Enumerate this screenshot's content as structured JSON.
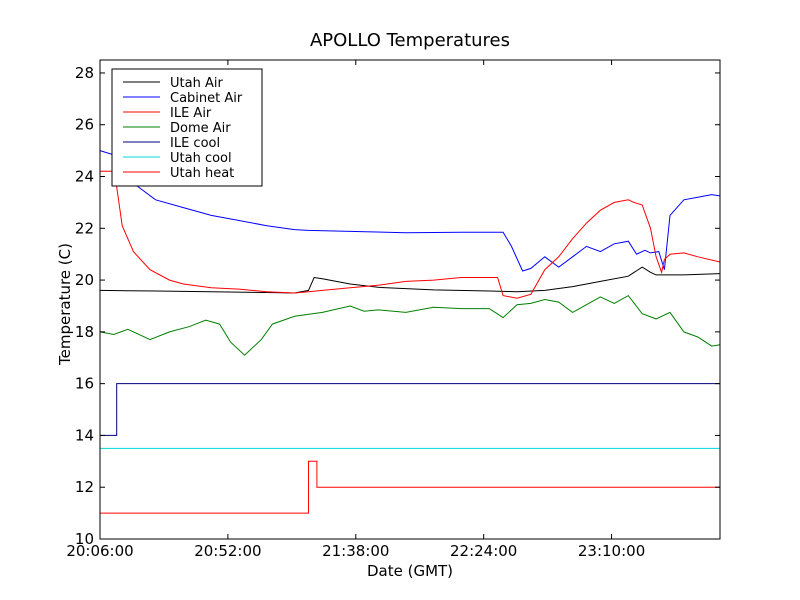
{
  "chart_data": {
    "type": "line",
    "title": "APOLLO Temperatures",
    "xlabel": "Date (GMT)",
    "ylabel": "Temperature (C)",
    "xlim_minutes": [
      0,
      223
    ],
    "ylim": [
      10,
      28.5
    ],
    "x_ticks": [
      {
        "minute": 0,
        "label": "20:06:00"
      },
      {
        "minute": 46,
        "label": "20:52:00"
      },
      {
        "minute": 92,
        "label": "21:38:00"
      },
      {
        "minute": 138,
        "label": "22:24:00"
      },
      {
        "minute": 184,
        "label": "23:10:00"
      }
    ],
    "y_ticks": [
      10,
      12,
      14,
      16,
      18,
      20,
      22,
      24,
      26,
      28
    ],
    "legend_position": "top-left",
    "series": [
      {
        "name": "Utah Air",
        "color": "#000000",
        "x": [
          0,
          20,
          40,
          60,
          70,
          75,
          77,
          80,
          90,
          100,
          120,
          140,
          150,
          160,
          170,
          180,
          190,
          195,
          198,
          200,
          210,
          223
        ],
        "y": [
          19.6,
          19.58,
          19.55,
          19.52,
          19.5,
          19.6,
          20.1,
          20.05,
          19.85,
          19.72,
          19.62,
          19.58,
          19.55,
          19.6,
          19.75,
          19.95,
          20.15,
          20.5,
          20.3,
          20.2,
          20.2,
          20.25
        ]
      },
      {
        "name": "Cabinet Air",
        "color": "#0000ff",
        "x": [
          0,
          6,
          10,
          20,
          30,
          40,
          50,
          60,
          70,
          75,
          90,
          110,
          130,
          145,
          148,
          152,
          155,
          160,
          165,
          170,
          175,
          180,
          185,
          190,
          193,
          196,
          198,
          201,
          203,
          205,
          210,
          215,
          220,
          223
        ],
        "y": [
          25.0,
          24.8,
          23.9,
          23.1,
          22.8,
          22.5,
          22.3,
          22.1,
          21.95,
          21.92,
          21.88,
          21.83,
          21.85,
          21.85,
          21.3,
          20.35,
          20.45,
          20.9,
          20.5,
          20.9,
          21.3,
          21.1,
          21.4,
          21.5,
          21.0,
          21.15,
          21.05,
          21.1,
          20.4,
          22.5,
          23.1,
          23.2,
          23.3,
          23.25
        ]
      },
      {
        "name": "ILE Air",
        "color": "#ff0000",
        "x": [
          0,
          5,
          6,
          8,
          12,
          18,
          25,
          30,
          40,
          50,
          60,
          70,
          75,
          80,
          90,
          100,
          110,
          120,
          130,
          143,
          145,
          150,
          155,
          160,
          165,
          170,
          175,
          180,
          185,
          190,
          192,
          195,
          198,
          200,
          202,
          203,
          205,
          210,
          215,
          223
        ],
        "y": [
          24.2,
          24.2,
          23.6,
          22.1,
          21.1,
          20.4,
          20.0,
          19.85,
          19.7,
          19.65,
          19.55,
          19.5,
          19.55,
          19.6,
          19.7,
          19.8,
          19.95,
          20.0,
          20.1,
          20.1,
          19.4,
          19.3,
          19.45,
          20.4,
          20.9,
          21.6,
          22.2,
          22.7,
          23.0,
          23.1,
          23.0,
          22.9,
          22.0,
          20.9,
          20.3,
          20.8,
          21.0,
          21.05,
          20.9,
          20.7
        ]
      },
      {
        "name": "Dome Air",
        "color": "#008000",
        "x": [
          0,
          5,
          10,
          18,
          25,
          32,
          38,
          43,
          47,
          52,
          58,
          62,
          70,
          80,
          90,
          95,
          100,
          110,
          120,
          130,
          140,
          145,
          150,
          155,
          160,
          165,
          170,
          175,
          180,
          185,
          190,
          195,
          200,
          205,
          210,
          215,
          220,
          223
        ],
        "y": [
          18.0,
          17.9,
          18.1,
          17.7,
          18.0,
          18.2,
          18.45,
          18.3,
          17.6,
          17.1,
          17.7,
          18.3,
          18.6,
          18.75,
          19.0,
          18.8,
          18.85,
          18.75,
          18.95,
          18.9,
          18.9,
          18.55,
          19.05,
          19.1,
          19.25,
          19.15,
          18.75,
          19.05,
          19.35,
          19.1,
          19.4,
          18.7,
          18.5,
          18.75,
          18.0,
          17.8,
          17.45,
          17.5
        ]
      },
      {
        "name": "ILE cool",
        "color": "#000080",
        "x": [
          0,
          6,
          6,
          223
        ],
        "y": [
          14.0,
          14.0,
          16.0,
          16.0
        ]
      },
      {
        "name": "Utah cool",
        "color": "#00d8d8",
        "x": [
          0,
          223
        ],
        "y": [
          13.5,
          13.5
        ]
      },
      {
        "name": "Utah heat",
        "color": "#ff0000",
        "x": [
          0,
          75,
          75,
          78,
          78,
          223
        ],
        "y": [
          11.0,
          11.0,
          13.0,
          13.0,
          12.0,
          12.0
        ]
      }
    ]
  }
}
